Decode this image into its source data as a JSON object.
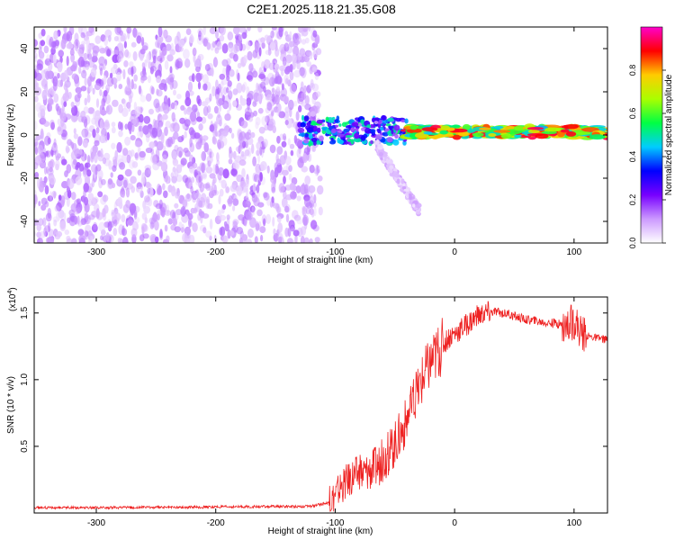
{
  "page": {
    "title": "C2E1.2025.118.21.35.G08"
  },
  "chart_data": [
    {
      "type": "heatmap",
      "title": "C2E1.2025.118.21.35.G08",
      "xlabel": "Height of straight line (km)",
      "ylabel": "Frequency (Hz)",
      "xlim": [
        -352,
        128
      ],
      "ylim": [
        -50,
        50
      ],
      "xticks": [
        -300,
        -200,
        -100,
        0,
        100
      ],
      "yticks": [
        -40,
        -20,
        0,
        20,
        40
      ],
      "colorbar": {
        "label": "Normalized spectral amplitude",
        "range": [
          0,
          1
        ],
        "ticks": [
          "0.0",
          "0.2",
          "0.4",
          "0.6",
          "0.8"
        ],
        "colormap": [
          "#ffffff",
          "#cc99ff",
          "#7700ff",
          "#0000ff",
          "#00ccff",
          "#00ff44",
          "#aaff00",
          "#ffcc00",
          "#ff0000",
          "#ff00cc"
        ]
      },
      "regions": [
        {
          "x": [
            -352,
            -112
          ],
          "freq": [
            -50,
            50
          ],
          "amplitude": 0.12,
          "pattern": "broadband noise"
        },
        {
          "x": [
            -130,
            -40
          ],
          "freq": [
            -4,
            8
          ],
          "amplitude": 0.4,
          "pattern": "signal band onset"
        },
        {
          "x": [
            -40,
            128
          ],
          "freq": [
            -1,
            4
          ],
          "amplitude": 0.85,
          "pattern": "steady carrier near 1 Hz"
        },
        {
          "x": [
            -65,
            -30
          ],
          "freq": [
            -35,
            -5
          ],
          "amplitude": 0.08,
          "pattern": "descending trace"
        }
      ]
    },
    {
      "type": "line",
      "xlabel": "Height of straight line (km)",
      "ylabel": "SNR (10 * v/v)",
      "scale_label": "(x10",
      "scale_exp": "4",
      "scale_close": ")",
      "xlim": [
        -352,
        128
      ],
      "ylim": [
        0,
        1.62
      ],
      "xticks": [
        -300,
        -200,
        -100,
        0,
        100
      ],
      "yticks": [
        "0.5",
        "1.0",
        "1.5"
      ],
      "color": "#ee2222",
      "x": [
        -352,
        -300,
        -200,
        -120,
        -105,
        -95,
        -85,
        -75,
        -65,
        -55,
        -45,
        -35,
        -25,
        -15,
        -5,
        5,
        15,
        25,
        35,
        45,
        60,
        75,
        85,
        95,
        100,
        105,
        110,
        120,
        128
      ],
      "y": [
        0.04,
        0.04,
        0.045,
        0.05,
        0.08,
        0.2,
        0.28,
        0.3,
        0.35,
        0.45,
        0.6,
        0.8,
        1.05,
        1.2,
        1.32,
        1.38,
        1.45,
        1.5,
        1.51,
        1.49,
        1.45,
        1.43,
        1.42,
        1.4,
        1.45,
        1.37,
        1.33,
        1.31,
        1.3
      ]
    }
  ]
}
